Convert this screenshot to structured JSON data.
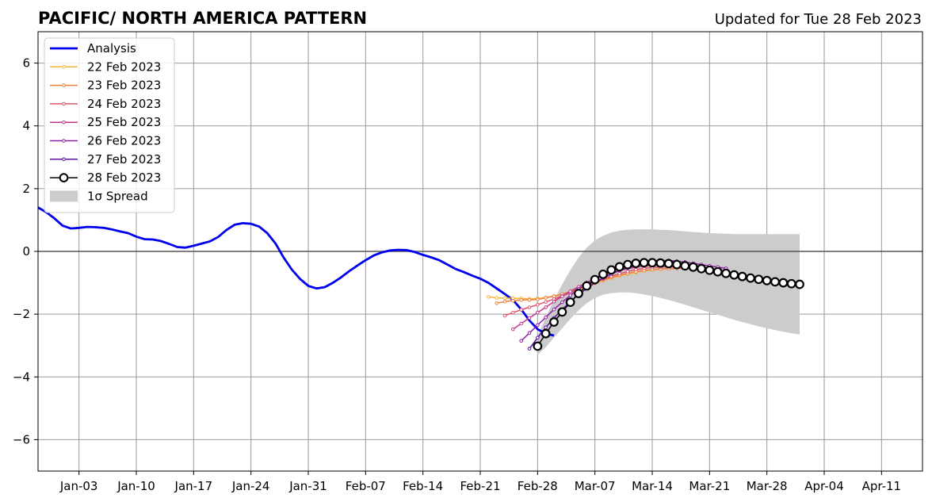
{
  "chart_data": {
    "type": "line",
    "title": "PACIFIC/ NORTH AMERICA PATTERN",
    "subtitle": "Updated for Tue 28 Feb 2023",
    "xlabel": "",
    "ylabel": "",
    "x_range": [
      "2022-12-29",
      "2023-04-16"
    ],
    "ylim": [
      -7,
      7
    ],
    "grid": true,
    "legend_placement": "top-left",
    "x_ticks": [
      "Jan-03",
      "Jan-10",
      "Jan-17",
      "Jan-24",
      "Jan-31",
      "Feb-07",
      "Feb-14",
      "Feb-21",
      "Feb-28",
      "Mar-07",
      "Mar-14",
      "Mar-21",
      "Mar-28",
      "Apr-04",
      "Apr-11"
    ],
    "y_ticks": [
      "6",
      "4",
      "2",
      "0",
      "−2",
      "−4",
      "−6"
    ],
    "y_tick_values": [
      6,
      4,
      2,
      0,
      -2,
      -4,
      -6
    ],
    "analysis": {
      "name": "Analysis",
      "color": "#0000ee",
      "start_date": "2022-12-29",
      "values": [
        1.4,
        1.25,
        1.05,
        0.82,
        0.73,
        0.75,
        0.78,
        0.77,
        0.75,
        0.7,
        0.64,
        0.58,
        0.47,
        0.39,
        0.38,
        0.33,
        0.24,
        0.14,
        0.12,
        0.18,
        0.25,
        0.32,
        0.46,
        0.68,
        0.85,
        0.9,
        0.88,
        0.79,
        0.58,
        0.25,
        -0.2,
        -0.58,
        -0.88,
        -1.1,
        -1.18,
        -1.14,
        -1.0,
        -0.83,
        -0.63,
        -0.45,
        -0.28,
        -0.13,
        -0.03,
        0.03,
        0.05,
        0.04,
        -0.02,
        -0.11,
        -0.19,
        -0.28,
        -0.42,
        -0.56,
        -0.66,
        -0.77,
        -0.87,
        -1.0,
        -1.18,
        -1.36,
        -1.55,
        -1.85,
        -2.2,
        -2.48,
        -2.62,
        -2.68
      ]
    },
    "forecasts": [
      {
        "name": "22 Feb 2023",
        "color": "#f4b43a",
        "start_date": "2023-02-22",
        "values": [
          -1.45,
          -1.48,
          -1.49,
          -1.49,
          -1.5,
          -1.51,
          -1.5,
          -1.47,
          -1.42,
          -1.37,
          -1.3,
          -1.22,
          -1.12,
          -1.02,
          -0.93,
          -0.85,
          -0.78,
          -0.72,
          -0.67,
          -0.62,
          -0.59,
          -0.57,
          -0.55,
          -0.53,
          -0.52,
          -0.52
        ]
      },
      {
        "name": "23 Feb 2023",
        "color": "#f08040",
        "start_date": "2023-02-23",
        "values": [
          -1.65,
          -1.6,
          -1.57,
          -1.55,
          -1.55,
          -1.53,
          -1.48,
          -1.43,
          -1.36,
          -1.28,
          -1.19,
          -1.09,
          -1.0,
          -0.91,
          -0.83,
          -0.76,
          -0.7,
          -0.65,
          -0.61,
          -0.58,
          -0.56,
          -0.55,
          -0.54,
          -0.53,
          -0.53,
          -0.53
        ]
      },
      {
        "name": "24 Feb 2023",
        "color": "#e0546a",
        "start_date": "2023-02-24",
        "values": [
          -2.05,
          -1.95,
          -1.86,
          -1.78,
          -1.7,
          -1.61,
          -1.52,
          -1.42,
          -1.32,
          -1.2,
          -1.09,
          -0.98,
          -0.88,
          -0.79,
          -0.71,
          -0.64,
          -0.58,
          -0.54,
          -0.51,
          -0.5,
          -0.49,
          -0.49,
          -0.5,
          -0.51,
          -0.53,
          -0.55
        ]
      },
      {
        "name": "25 Feb 2023",
        "color": "#c0388c",
        "start_date": "2023-02-25",
        "values": [
          -2.48,
          -2.3,
          -2.12,
          -1.95,
          -1.78,
          -1.6,
          -1.43,
          -1.27,
          -1.13,
          -0.99,
          -0.87,
          -0.77,
          -0.68,
          -0.61,
          -0.55,
          -0.5,
          -0.47,
          -0.45,
          -0.44,
          -0.45,
          -0.47,
          -0.5,
          -0.53,
          -0.57,
          -0.61,
          -0.65
        ]
      },
      {
        "name": "26 Feb 2023",
        "color": "#9020a8",
        "start_date": "2023-02-26",
        "values": [
          -2.85,
          -2.6,
          -2.35,
          -2.1,
          -1.85,
          -1.62,
          -1.4,
          -1.2,
          -1.02,
          -0.86,
          -0.72,
          -0.61,
          -0.51,
          -0.43,
          -0.37,
          -0.33,
          -0.3,
          -0.29,
          -0.29,
          -0.31,
          -0.34,
          -0.38,
          -0.42,
          -0.46,
          -0.5,
          -0.54
        ]
      },
      {
        "name": "27 Feb 2023",
        "color": "#5a0fa0",
        "start_date": "2023-02-27",
        "values": [
          -3.1,
          -2.75,
          -2.42,
          -2.12,
          -1.85,
          -1.6,
          -1.38,
          -1.18,
          -1.0,
          -0.85,
          -0.72,
          -0.61,
          -0.52,
          -0.45,
          -0.4,
          -0.37,
          -0.36,
          -0.36,
          -0.38,
          -0.41,
          -0.45,
          -0.5,
          -0.55,
          -0.6,
          -0.65,
          -0.7
        ]
      }
    ],
    "latest": {
      "name": "28 Feb 2023",
      "color": "#000000",
      "start_date": "2023-02-28",
      "values": [
        -3.02,
        -2.62,
        -2.25,
        -1.93,
        -1.62,
        -1.34,
        -1.1,
        -0.9,
        -0.73,
        -0.59,
        -0.49,
        -0.42,
        -0.38,
        -0.36,
        -0.36,
        -0.37,
        -0.39,
        -0.42,
        -0.46,
        -0.5,
        -0.55,
        -0.6,
        -0.65,
        -0.7,
        -0.75,
        -0.8,
        -0.85,
        -0.89,
        -0.93,
        -0.97,
        -1.0,
        -1.03,
        -1.05
      ]
    },
    "spread": {
      "name": "1σ Spread",
      "color": "#cccccc",
      "start_date": "2023-02-28",
      "upper": [
        -2.7,
        -2.1,
        -1.55,
        -1.05,
        -0.6,
        -0.2,
        0.12,
        0.35,
        0.5,
        0.6,
        0.66,
        0.69,
        0.7,
        0.7,
        0.7,
        0.69,
        0.68,
        0.66,
        0.64,
        0.62,
        0.6,
        0.58,
        0.57,
        0.56,
        0.55,
        0.55,
        0.55,
        0.55,
        0.55,
        0.55,
        0.55,
        0.55,
        0.55
      ],
      "lower": [
        -3.3,
        -3.05,
        -2.75,
        -2.45,
        -2.15,
        -1.88,
        -1.65,
        -1.48,
        -1.38,
        -1.33,
        -1.31,
        -1.31,
        -1.33,
        -1.37,
        -1.42,
        -1.48,
        -1.55,
        -1.62,
        -1.7,
        -1.78,
        -1.86,
        -1.94,
        -2.02,
        -2.1,
        -2.18,
        -2.25,
        -2.32,
        -2.39,
        -2.45,
        -2.51,
        -2.56,
        -2.61,
        -2.65
      ]
    }
  }
}
